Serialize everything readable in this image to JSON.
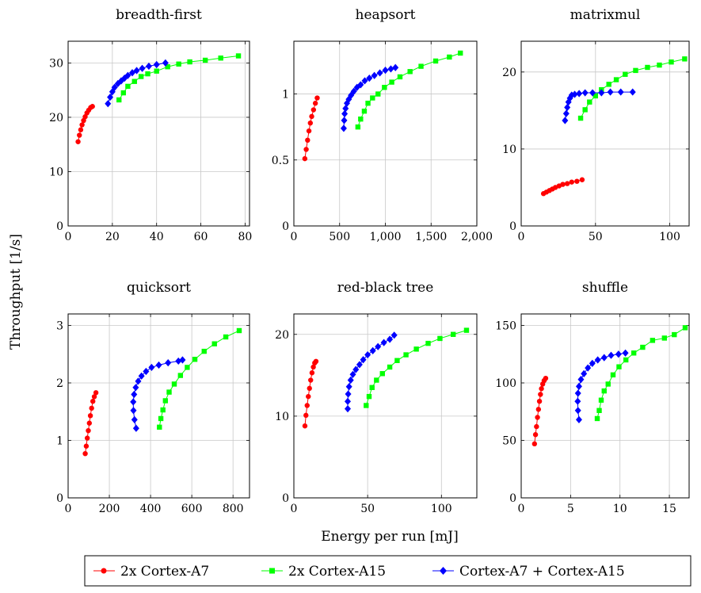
{
  "figure": {
    "ylabel": "Throughput [1/s]",
    "xlabel": "Energy per run [mJ]"
  },
  "legend": {
    "position": "bottom-center",
    "entries": [
      {
        "name": "2x Cortex-A7",
        "color": "#ff0000",
        "marker": "circle"
      },
      {
        "name": "2x Cortex-A15",
        "color": "#00ff00",
        "marker": "square"
      },
      {
        "name": "Cortex-A7 + Cortex-A15",
        "color": "#0000ff",
        "marker": "diamond"
      }
    ]
  },
  "chart_data": [
    {
      "type": "line",
      "title": "breadth-first",
      "grid": true,
      "xlim": [
        0,
        82
      ],
      "ylim": [
        0,
        34
      ],
      "xticks": [
        0,
        20,
        40,
        60,
        80
      ],
      "xtick_labels": [
        "0",
        "20",
        "40",
        "60",
        "80"
      ],
      "yticks": [
        0,
        10,
        20,
        30
      ],
      "ytick_labels": [
        "0",
        "10",
        "20",
        "30"
      ],
      "series": [
        {
          "name": "2x Cortex-A7",
          "x": [
            4.5,
            5.1,
            5.7,
            6.3,
            7.0,
            7.7,
            8.5,
            9.3,
            10.2,
            11.0
          ],
          "y": [
            15.5,
            16.7,
            17.7,
            18.6,
            19.4,
            20.1,
            20.8,
            21.3,
            21.8,
            22.0
          ]
        },
        {
          "name": "2x Cortex-A15",
          "x": [
            23,
            25,
            27,
            30,
            33,
            36,
            40,
            45,
            50,
            55,
            62,
            69,
            77
          ],
          "y": [
            23.2,
            24.5,
            25.7,
            26.6,
            27.5,
            28.0,
            28.5,
            29.3,
            29.8,
            30.2,
            30.5,
            30.9,
            31.3
          ]
        },
        {
          "name": "Cortex-A7 + Cortex-A15",
          "x": [
            18,
            19,
            20,
            21,
            22.5,
            24,
            25.5,
            27,
            29,
            31,
            33.5,
            36.5,
            40,
            44
          ],
          "y": [
            22.5,
            23.7,
            24.7,
            25.5,
            26.2,
            26.7,
            27.2,
            27.7,
            28.2,
            28.6,
            29.0,
            29.4,
            29.7,
            30.0
          ]
        }
      ]
    },
    {
      "type": "line",
      "title": "heapsort",
      "grid": true,
      "xlim": [
        0,
        2000
      ],
      "ylim": [
        0,
        1.4
      ],
      "xticks": [
        0,
        500,
        1000,
        1500,
        2000
      ],
      "xtick_labels": [
        "0",
        "500",
        "1,000",
        "1,500",
        "2,000"
      ],
      "yticks": [
        0,
        0.5,
        1
      ],
      "ytick_labels": [
        "0",
        "0.5",
        "1"
      ],
      "series": [
        {
          "name": "2x Cortex-A7",
          "x": [
            120,
            135,
            150,
            165,
            180,
            195,
            215,
            235,
            255
          ],
          "y": [
            0.51,
            0.58,
            0.65,
            0.72,
            0.78,
            0.83,
            0.88,
            0.93,
            0.97
          ]
        },
        {
          "name": "2x Cortex-A15",
          "x": [
            700,
            730,
            770,
            810,
            860,
            920,
            990,
            1070,
            1160,
            1270,
            1390,
            1550,
            1700,
            1820
          ],
          "y": [
            0.75,
            0.81,
            0.87,
            0.93,
            0.97,
            1.0,
            1.05,
            1.09,
            1.13,
            1.17,
            1.21,
            1.25,
            1.28,
            1.31
          ]
        },
        {
          "name": "Cortex-A7 + Cortex-A15",
          "x": [
            545,
            550,
            555,
            565,
            580,
            600,
            625,
            655,
            690,
            730,
            775,
            825,
            880,
            940,
            1000,
            1060,
            1110
          ],
          "y": [
            0.74,
            0.8,
            0.85,
            0.89,
            0.93,
            0.96,
            0.99,
            1.02,
            1.05,
            1.07,
            1.1,
            1.12,
            1.14,
            1.16,
            1.18,
            1.19,
            1.2
          ]
        }
      ]
    },
    {
      "type": "line",
      "title": "matrixmul",
      "grid": true,
      "xlim": [
        0,
        113
      ],
      "ylim": [
        0,
        24
      ],
      "xticks": [
        0,
        50,
        100
      ],
      "xtick_labels": [
        "0",
        "50",
        "100"
      ],
      "yticks": [
        0,
        10,
        20
      ],
      "ytick_labels": [
        "0",
        "10",
        "20"
      ],
      "series": [
        {
          "name": "2x Cortex-A7",
          "x": [
            15,
            17,
            19,
            21,
            23,
            25.5,
            28,
            31,
            34,
            37.5,
            41
          ],
          "y": [
            4.2,
            4.4,
            4.6,
            4.8,
            5.0,
            5.2,
            5.4,
            5.5,
            5.7,
            5.8,
            6.0
          ]
        },
        {
          "name": "2x Cortex-A15",
          "x": [
            40,
            43,
            46,
            50,
            54,
            59,
            64,
            70,
            77,
            85,
            93,
            101,
            110
          ],
          "y": [
            14.0,
            15.1,
            16.1,
            16.9,
            17.7,
            18.4,
            19.0,
            19.7,
            20.2,
            20.6,
            20.9,
            21.3,
            21.7
          ]
        },
        {
          "name": "Cortex-A7 + Cortex-A15",
          "x": [
            29.5,
            30.3,
            31.0,
            31.8,
            32.8,
            34,
            36,
            39,
            43,
            48,
            54,
            60,
            67,
            75
          ],
          "y": [
            13.7,
            14.6,
            15.4,
            16.1,
            16.6,
            17.0,
            17.1,
            17.2,
            17.3,
            17.3,
            17.3,
            17.4,
            17.4,
            17.4
          ]
        }
      ]
    },
    {
      "type": "line",
      "title": "quicksort",
      "grid": true,
      "xlim": [
        0,
        880
      ],
      "ylim": [
        0,
        3.2
      ],
      "xticks": [
        0,
        200,
        400,
        600,
        800
      ],
      "xtick_labels": [
        "0",
        "200",
        "400",
        "600",
        "800"
      ],
      "yticks": [
        0,
        1,
        2,
        3
      ],
      "ytick_labels": [
        "0",
        "1",
        "2",
        "3"
      ],
      "series": [
        {
          "name": "2x Cortex-A7",
          "x": [
            83,
            88,
            93,
            98,
            103,
            108,
            114,
            120,
            127,
            135
          ],
          "y": [
            0.77,
            0.9,
            1.04,
            1.17,
            1.3,
            1.43,
            1.56,
            1.68,
            1.76,
            1.83
          ]
        },
        {
          "name": "2x Cortex-A15",
          "x": [
            443,
            450,
            460,
            472,
            490,
            515,
            545,
            578,
            615,
            660,
            710,
            765,
            830
          ],
          "y": [
            1.23,
            1.38,
            1.53,
            1.69,
            1.84,
            1.98,
            2.13,
            2.27,
            2.41,
            2.55,
            2.68,
            2.8,
            2.91
          ]
        },
        {
          "name": "Cortex-A7 + Cortex-A15",
          "x": [
            330,
            322,
            317,
            316,
            320,
            328,
            340,
            356,
            378,
            405,
            440,
            485,
            535,
            555
          ],
          "y": [
            1.21,
            1.36,
            1.52,
            1.67,
            1.8,
            1.92,
            2.03,
            2.12,
            2.2,
            2.27,
            2.31,
            2.35,
            2.38,
            2.4
          ]
        }
      ]
    },
    {
      "type": "line",
      "title": "red-black tree",
      "grid": true,
      "xlim": [
        0,
        124
      ],
      "ylim": [
        0,
        22.5
      ],
      "xticks": [
        0,
        50,
        100
      ],
      "xtick_labels": [
        "0",
        "50",
        "100"
      ],
      "yticks": [
        0,
        10,
        20
      ],
      "ytick_labels": [
        "0",
        "10",
        "20"
      ],
      "series": [
        {
          "name": "2x Cortex-A7",
          "x": [
            7.5,
            8.2,
            9.0,
            9.8,
            10.6,
            11.4,
            12.3,
            13.2,
            14.1,
            15.0
          ],
          "y": [
            8.8,
            10.1,
            11.3,
            12.4,
            13.4,
            14.4,
            15.3,
            16.0,
            16.5,
            16.7
          ]
        },
        {
          "name": "2x Cortex-A15",
          "x": [
            49,
            51,
            53,
            56,
            60,
            65,
            70,
            76,
            83,
            91,
            99,
            108,
            117
          ],
          "y": [
            11.3,
            12.4,
            13.5,
            14.4,
            15.2,
            16.0,
            16.8,
            17.5,
            18.2,
            18.9,
            19.5,
            20.0,
            20.5
          ]
        },
        {
          "name": "Cortex-A7 + Cortex-A15",
          "x": [
            36.5,
            36.5,
            36.8,
            37.4,
            38.5,
            40,
            42,
            44.5,
            47,
            50,
            53.5,
            57,
            61,
            65,
            68
          ],
          "y": [
            10.9,
            11.8,
            12.7,
            13.6,
            14.4,
            15.1,
            15.7,
            16.3,
            16.9,
            17.5,
            18.0,
            18.5,
            19.0,
            19.4,
            19.9
          ]
        }
      ]
    },
    {
      "type": "line",
      "title": "shuffle",
      "grid": true,
      "xlim": [
        0,
        17
      ],
      "ylim": [
        0,
        160
      ],
      "xticks": [
        0,
        5,
        10,
        15
      ],
      "xtick_labels": [
        "0",
        "5",
        "10",
        "15"
      ],
      "yticks": [
        0,
        50,
        100,
        150
      ],
      "ytick_labels": [
        "0",
        "50",
        "100",
        "150"
      ],
      "series": [
        {
          "name": "2x Cortex-A7",
          "x": [
            1.35,
            1.45,
            1.55,
            1.65,
            1.75,
            1.85,
            1.95,
            2.05,
            2.18,
            2.32,
            2.48
          ],
          "y": [
            47,
            55,
            62,
            70,
            77,
            84,
            90,
            95,
            99,
            102,
            104
          ]
        },
        {
          "name": "2x Cortex-A15",
          "x": [
            7.7,
            7.9,
            8.1,
            8.4,
            8.8,
            9.3,
            9.9,
            10.6,
            11.4,
            12.3,
            13.3,
            14.5,
            15.5,
            16.6
          ],
          "y": [
            69,
            76,
            85,
            93,
            99,
            107,
            114,
            120,
            126,
            131,
            137,
            139,
            142,
            148
          ]
        },
        {
          "name": "Cortex-A7 + Cortex-A15",
          "x": [
            5.85,
            5.75,
            5.72,
            5.75,
            5.85,
            6.05,
            6.35,
            6.75,
            7.2,
            7.75,
            8.4,
            9.1,
            9.85,
            10.55
          ],
          "y": [
            68,
            76,
            84,
            91,
            97,
            103,
            108,
            113,
            117,
            120,
            122,
            124,
            125,
            126
          ]
        }
      ]
    }
  ]
}
